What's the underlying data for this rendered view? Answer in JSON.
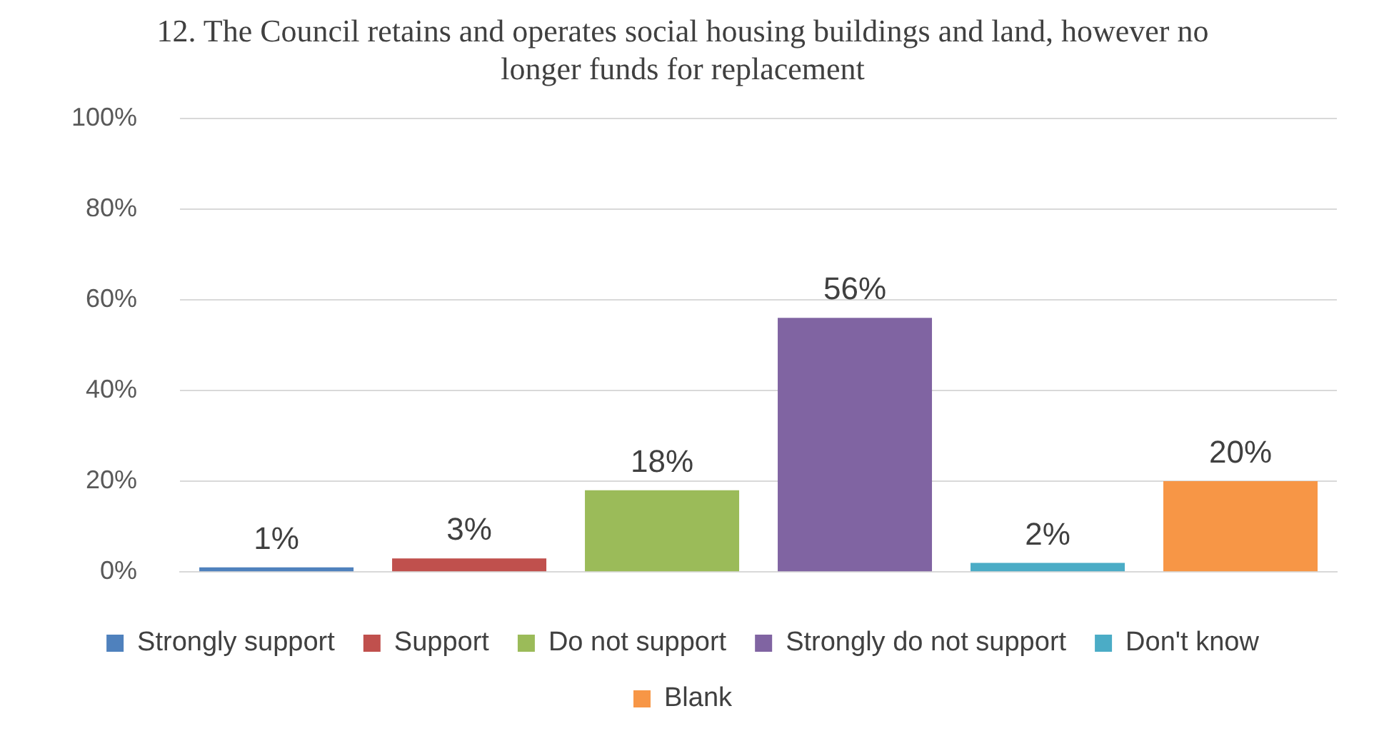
{
  "chart_data": {
    "type": "bar",
    "title": "12. The Council retains and operates social housing buildings and land, however no longer funds for replacement",
    "categories": [
      null,
      null,
      null,
      null,
      null,
      null
    ],
    "series": [
      {
        "name": "Strongly support",
        "color": "#4f81bd",
        "values": [
          1,
          null,
          null,
          null,
          null,
          null
        ],
        "value_labels": [
          "1%",
          null,
          null,
          null,
          null,
          null
        ]
      },
      {
        "name": "Support",
        "color": "#c0504d",
        "values": [
          null,
          3,
          null,
          null,
          null,
          null
        ],
        "value_labels": [
          null,
          "3%",
          null,
          null,
          null,
          null
        ]
      },
      {
        "name": "Do not support",
        "color": "#9bbb59",
        "values": [
          null,
          null,
          18,
          null,
          null,
          null
        ],
        "value_labels": [
          null,
          null,
          "18%",
          null,
          null,
          null
        ]
      },
      {
        "name": "Strongly do not support",
        "color": "#8064a2",
        "values": [
          null,
          null,
          null,
          56,
          null,
          null
        ],
        "value_labels": [
          null,
          null,
          null,
          "56%",
          null,
          null
        ]
      },
      {
        "name": "Don't know",
        "color": "#4bacc6",
        "values": [
          null,
          null,
          null,
          null,
          2,
          null
        ],
        "value_labels": [
          null,
          null,
          null,
          null,
          "2%",
          null
        ]
      },
      {
        "name": "Blank",
        "color": "#f79646",
        "values": [
          null,
          null,
          null,
          null,
          null,
          20
        ],
        "value_labels": [
          null,
          null,
          null,
          null,
          null,
          "20%"
        ]
      }
    ],
    "ylim": [
      0,
      100
    ],
    "yticks": [
      {
        "value": 0,
        "label": "0%"
      },
      {
        "value": 20,
        "label": "20%"
      },
      {
        "value": 40,
        "label": "40%"
      },
      {
        "value": 60,
        "label": "60%"
      },
      {
        "value": 80,
        "label": "80%"
      },
      {
        "value": 100,
        "label": "100%"
      }
    ],
    "grid": "y",
    "legend": "bottom"
  }
}
